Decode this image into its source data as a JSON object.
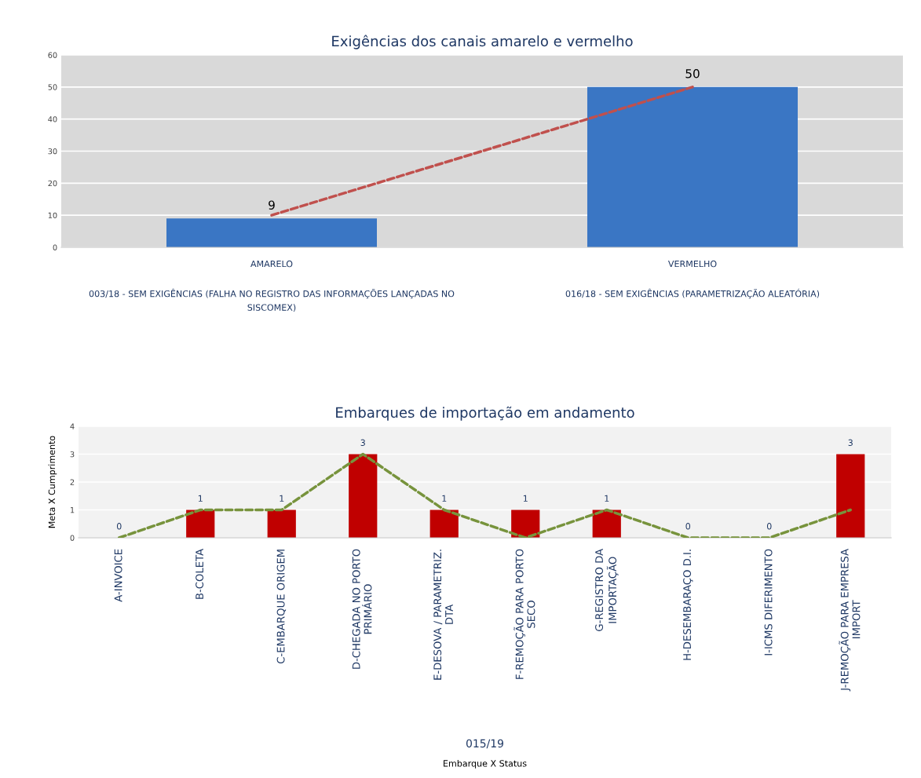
{
  "chart_data": [
    {
      "type": "bar",
      "title": "Exigências dos canais amarelo e vermelho",
      "categories": [
        "AMARELO\n\n003/18 - SEM EXIGÊNCIAS (FALHA NO REGISTRO DAS INFORMAÇÕES LANÇADAS NO\nSISCOMEX)",
        "VERMELHO\n\n016/18 - SEM EXIGÊNCIAS (PARAMETRIZAÇÃO ALEATÓRIA)"
      ],
      "series": [
        {
          "color": "#3a76c4",
          "values": [
            9,
            50
          ],
          "value_labels": [
            "9",
            "50"
          ]
        },
        {
          "type": "line",
          "color": "#c0504d",
          "line_style": "dashed",
          "values": [
            10,
            50
          ]
        }
      ],
      "ylim": [
        0,
        60
      ],
      "yticks": [
        0,
        10,
        20,
        30,
        40,
        50,
        60
      ],
      "grid": "y",
      "legend": false
    },
    {
      "type": "bar",
      "title": "Embarques de importação em andamento",
      "categories": [
        "A-INVOICE",
        "B-COLETA",
        "C-EMBARQUE ORIGEM",
        "D-CHEGADA NO PORTO\nPRIMÁRIO",
        "E-DESOVA / PARAMETRIZ.\nDTA",
        "F-REMOÇÃO PARA PORTO\nSECO",
        "G-REGISTRO DA\nIMPORTAÇÃO",
        "H-DESEMBARAÇO D.I.",
        "I-ICMS DIFERIMENTO",
        "J-REMOÇÃO PARA EMPRESA\nIMPORT"
      ],
      "series": [
        {
          "color": "#c00000",
          "values": [
            0,
            1,
            1,
            3,
            1,
            1,
            1,
            0,
            0,
            3
          ],
          "value_labels": [
            "0",
            "1",
            "1",
            "3",
            "1",
            "1",
            "1",
            "0",
            "0",
            "3"
          ]
        },
        {
          "type": "line",
          "color": "#77933c",
          "line_style": "dashed",
          "values": [
            0,
            1,
            1,
            3,
            1,
            0,
            1,
            0,
            0,
            1
          ]
        }
      ],
      "ylim": [
        0,
        4
      ],
      "yticks": [
        0,
        1,
        2,
        3,
        4
      ],
      "grid": "y",
      "legend": false,
      "xlabel": "Embarque X Status",
      "ylabel": "Meta X Cumprimento",
      "annotations": [
        "015/19"
      ]
    }
  ]
}
